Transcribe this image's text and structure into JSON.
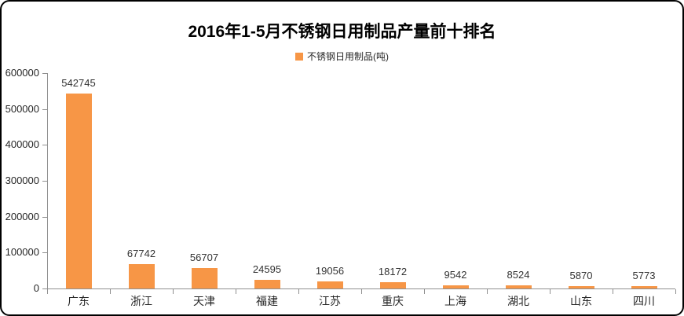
{
  "chart_data": {
    "type": "bar",
    "title": "2016年1-5月不锈钢日用制品产量前十排名",
    "legend": [
      "不锈钢日用制品(吨)"
    ],
    "legend_position": "top-center",
    "categories": [
      "广东",
      "浙江",
      "天津",
      "福建",
      "江苏",
      "重庆",
      "上海",
      "湖北",
      "山东",
      "四川"
    ],
    "values": [
      542745,
      67742,
      56707,
      24595,
      19056,
      18172,
      9542,
      8524,
      5870,
      5773
    ],
    "data_labels": true,
    "xlabel": "",
    "ylabel": "",
    "ylim": [
      0,
      600000
    ],
    "ytick_interval": 100000,
    "ytick_labels": [
      "0",
      "100000",
      "200000",
      "300000",
      "400000",
      "500000",
      "600000"
    ],
    "grid": false,
    "colors": {
      "bar": "#F79646",
      "axis": "#909090",
      "text": "#262626",
      "title": "#000000",
      "frame_border": "#000000",
      "background": "#FFFFFF"
    }
  }
}
